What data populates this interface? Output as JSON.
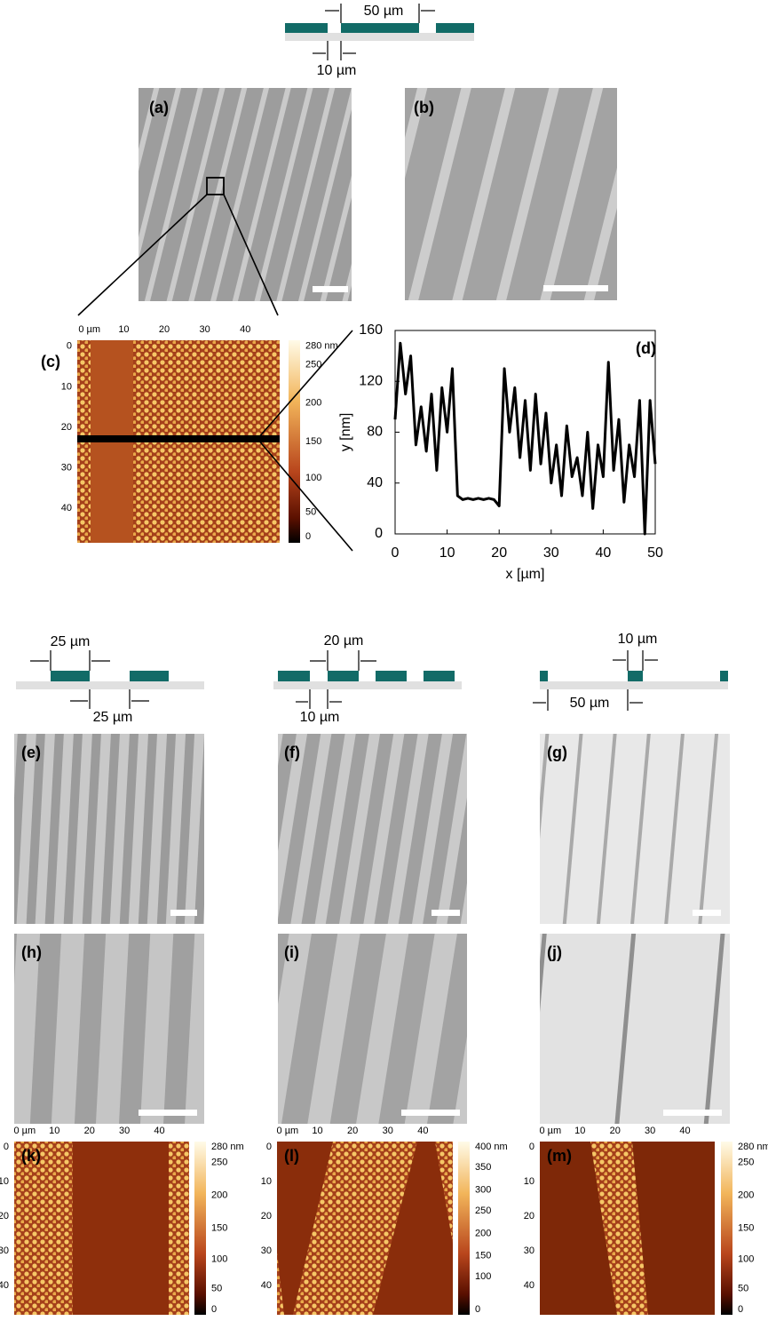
{
  "schematics": [
    {
      "labels": [
        "50 µm",
        "10 µm"
      ]
    },
    {
      "labels": [
        "25 µm",
        "25 µm"
      ]
    },
    {
      "labels": [
        "20 µm",
        "10 µm"
      ]
    },
    {
      "labels": [
        "10 µm",
        "50 µm"
      ]
    }
  ],
  "panel_labels": [
    "(a)",
    "(b)",
    "(c)",
    "(d)",
    "(e)",
    "(f)",
    "(g)",
    "(h)",
    "(i)",
    "(j)",
    "(k)",
    "(l)",
    "(m)"
  ],
  "afm_maps": [
    {
      "xticks": [
        "0 µm",
        "10",
        "20",
        "30",
        "40"
      ],
      "yticks": [
        "0",
        "10",
        "20",
        "30",
        "40"
      ],
      "colorbar": [
        "280 nm",
        "250",
        "200",
        "150",
        "100",
        "50",
        "0"
      ]
    },
    {
      "xticks": [
        "0 µm",
        "10",
        "20",
        "30",
        "40"
      ],
      "yticks": [
        "0",
        "10",
        "20",
        "30",
        "40"
      ],
      "colorbar": [
        "280 nm",
        "250",
        "200",
        "150",
        "100",
        "50",
        "0"
      ]
    },
    {
      "xticks": [
        "0 µm",
        "10",
        "20",
        "30",
        "40"
      ],
      "yticks": [
        "0",
        "10",
        "20",
        "30",
        "40"
      ],
      "colorbar": [
        "400 nm",
        "350",
        "300",
        "250",
        "200",
        "150",
        "100",
        "0"
      ]
    },
    {
      "xticks": [
        "0 µm",
        "10",
        "20",
        "30",
        "40"
      ],
      "yticks": [
        "0",
        "10",
        "20",
        "30",
        "40"
      ],
      "colorbar": [
        "280 nm",
        "250",
        "200",
        "150",
        "100",
        "50",
        "0"
      ]
    }
  ],
  "chart_data": {
    "type": "line",
    "xlabel": "x [µm]",
    "ylabel": "y [nm]",
    "x": [
      0,
      1,
      2,
      3,
      4,
      5,
      6,
      7,
      8,
      9,
      10,
      11,
      12,
      13,
      14,
      15,
      16,
      17,
      18,
      19,
      20,
      21,
      22,
      23,
      24,
      25,
      26,
      27,
      28,
      29,
      30,
      31,
      32,
      33,
      34,
      35,
      36,
      37,
      38,
      39,
      40,
      41,
      42,
      43,
      44,
      45,
      46,
      47,
      48,
      49,
      50
    ],
    "values": [
      90,
      150,
      110,
      140,
      70,
      100,
      65,
      110,
      50,
      115,
      80,
      130,
      30,
      27,
      28,
      27,
      28,
      27,
      28,
      27,
      22,
      130,
      80,
      115,
      60,
      105,
      50,
      110,
      55,
      95,
      40,
      70,
      30,
      85,
      45,
      60,
      30,
      80,
      20,
      70,
      45,
      135,
      50,
      90,
      25,
      70,
      45,
      105,
      0,
      105,
      55
    ],
    "color": "#000000",
    "xlim": [
      0,
      50
    ],
    "xticks": [
      0,
      10,
      20,
      30,
      40,
      50
    ],
    "ylim": [
      0,
      160
    ],
    "yticks": [
      0,
      40,
      80,
      120,
      160
    ]
  }
}
